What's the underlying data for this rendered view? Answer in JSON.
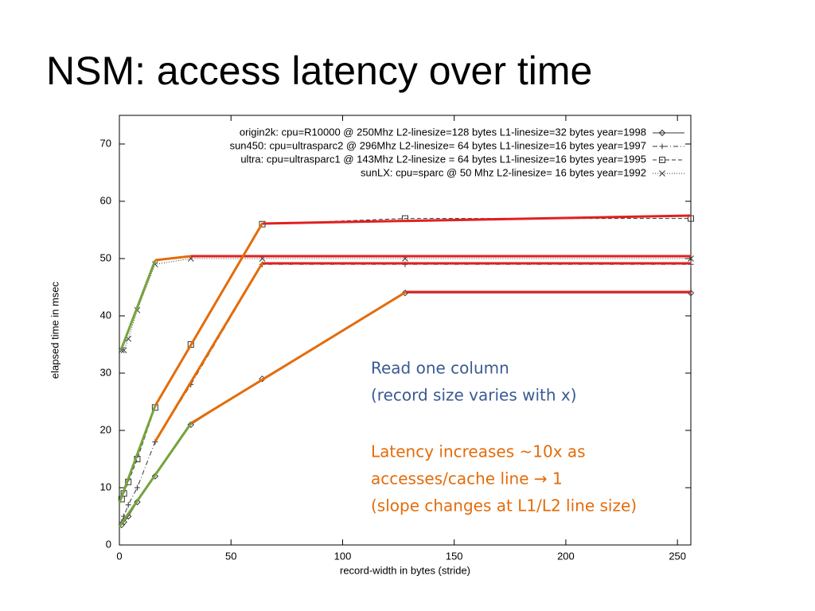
{
  "title": "NSM: access latency over time",
  "notes": [
    "Read one column",
    "(record size varies with x)",
    "Latency increases ~10x as",
    "accesses/cache line → 1",
    "(slope changes at L1/L2 line size)"
  ],
  "chart_data": {
    "type": "line",
    "xlabel": "record-width in bytes (stride)",
    "ylabel": "elapsed time in msec",
    "xlim": [
      0,
      256
    ],
    "ylim": [
      0,
      75
    ],
    "xticks": [
      0,
      50,
      100,
      150,
      200,
      250
    ],
    "yticks": [
      0,
      10,
      20,
      30,
      40,
      50,
      60,
      70
    ],
    "legend": "upper right",
    "series": [
      {
        "name": "origin2k: cpu=R10000 @ 250Mhz L2-linesize=128 bytes L1-linesize=32 bytes year=1998",
        "color": "#333333",
        "marker": "diamond",
        "line_style": "solid",
        "x": [
          1,
          2,
          4,
          8,
          16,
          32,
          64,
          128,
          256
        ],
        "values": [
          3.5,
          4,
          5,
          7.5,
          12,
          21,
          29,
          44,
          44
        ]
      },
      {
        "name": "sun450: cpu=ultrasparc2 @ 296Mhz L2-linesize= 64 bytes L1-linesize=16 bytes year=1997",
        "color": "#333333",
        "marker": "plus",
        "line_style": "dashdot",
        "x": [
          1,
          2,
          4,
          8,
          16,
          32,
          64,
          128,
          256
        ],
        "values": [
          4,
          5,
          7,
          10,
          18,
          28,
          49,
          49,
          49
        ]
      },
      {
        "name": "ultra: cpu=ultrasparc1 @ 143Mhz L2-linesize = 64 bytes L1-linesize=16 bytes year=1995",
        "color": "#333333",
        "marker": "square",
        "line_style": "dashed",
        "x": [
          1,
          2,
          4,
          8,
          16,
          32,
          64,
          128,
          256
        ],
        "values": [
          8,
          9,
          11,
          15,
          24,
          35,
          56,
          57,
          57
        ]
      },
      {
        "name": "sunLX: cpu=sparc @ 50 Mhz L2-linesize= 16 bytes year=1992",
        "color": "#333333",
        "marker": "cross",
        "line_style": "dotted",
        "x": [
          1,
          2,
          4,
          8,
          16,
          32,
          64,
          128,
          256
        ],
        "values": [
          34,
          34,
          36,
          41,
          49,
          50,
          50,
          50,
          50
        ]
      }
    ]
  }
}
